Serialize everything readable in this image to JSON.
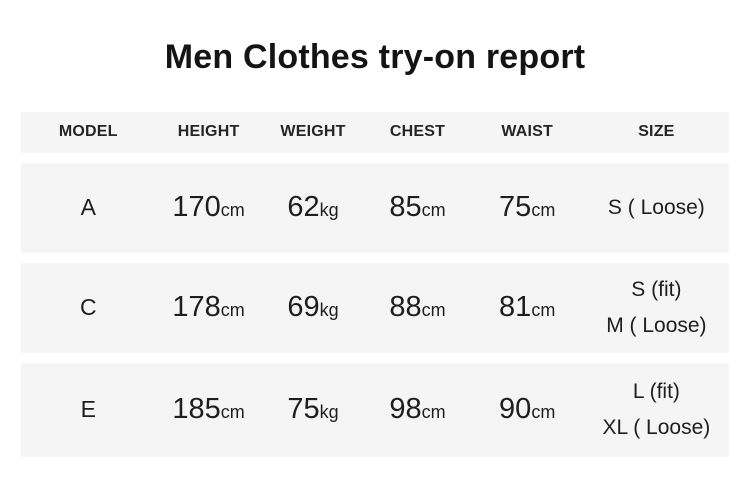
{
  "title": "Men Clothes try-on report",
  "table": {
    "headers": [
      "MODEL",
      "HEIGHT",
      "WEIGHT",
      "CHEST",
      "WAIST",
      "SIZE"
    ],
    "rows": [
      {
        "model": "A",
        "height": {
          "value": "170",
          "unit": "cm"
        },
        "weight": {
          "value": "62",
          "unit": "kg"
        },
        "chest": {
          "value": "85",
          "unit": "cm"
        },
        "waist": {
          "value": "75",
          "unit": "cm"
        },
        "size_lines": [
          "S ( Loose)"
        ]
      },
      {
        "model": "C",
        "height": {
          "value": "178",
          "unit": "cm"
        },
        "weight": {
          "value": "69",
          "unit": "kg"
        },
        "chest": {
          "value": "88",
          "unit": "cm"
        },
        "waist": {
          "value": "81",
          "unit": "cm"
        },
        "size_lines": [
          "S (fit)",
          "M ( Loose)"
        ]
      },
      {
        "model": "E",
        "height": {
          "value": "185",
          "unit": "cm"
        },
        "weight": {
          "value": "75",
          "unit": "kg"
        },
        "chest": {
          "value": "98",
          "unit": "cm"
        },
        "waist": {
          "value": "90",
          "unit": "cm"
        },
        "size_lines": [
          "L (fit)",
          "XL ( Loose)"
        ]
      }
    ]
  },
  "chart_data": {
    "type": "table",
    "title": "Men Clothes try-on report",
    "columns": [
      "MODEL",
      "HEIGHT",
      "WEIGHT",
      "CHEST",
      "WAIST",
      "SIZE"
    ],
    "rows": [
      [
        "A",
        "170cm",
        "62kg",
        "85cm",
        "75cm",
        "S ( Loose)"
      ],
      [
        "C",
        "178cm",
        "69kg",
        "88cm",
        "81cm",
        "S (fit) M ( Loose)"
      ],
      [
        "E",
        "185cm",
        "75kg",
        "98cm",
        "90cm",
        "L (fit) XL ( Loose)"
      ]
    ]
  },
  "colors": {
    "page_bg": "#ffffff",
    "row_bg": "#f5f5f6",
    "title_text": "#141414",
    "body_text": "#1e1e1e"
  }
}
